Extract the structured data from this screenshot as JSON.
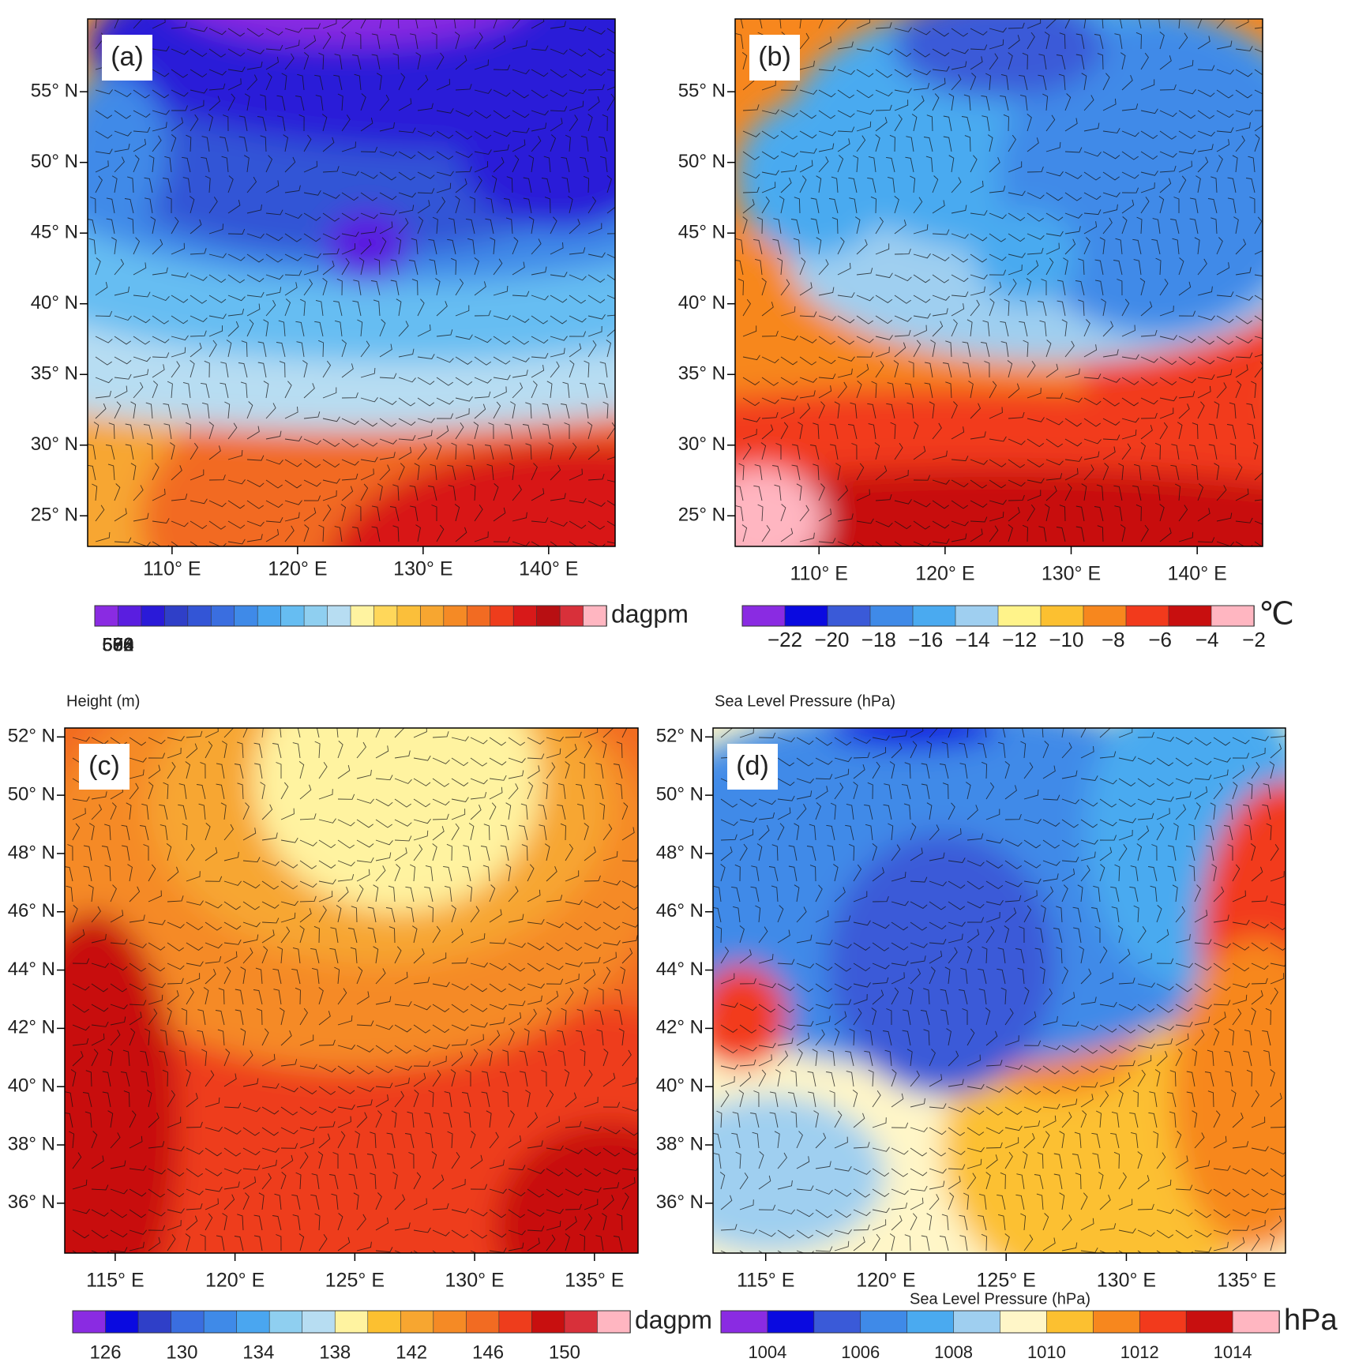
{
  "panels": [
    {
      "label": "(a)",
      "yticks": [
        "55° N",
        "50° N",
        "45° N",
        "40° N",
        "35° N",
        "30° N",
        "25° N"
      ],
      "xticks": [
        "110° E",
        "120° E",
        "130° E",
        "140° E"
      ],
      "colorbar": {
        "unit": "dagpm",
        "colors": [
          "#8a2be2",
          "#5a1ee0",
          "#2a1ad8",
          "#2f3fc8",
          "#3355d6",
          "#3a6ee0",
          "#3f8ae8",
          "#4aa6f0",
          "#66bdf2",
          "#8fcff0",
          "#b7ddf2",
          "#fff3a0",
          "#ffd75a",
          "#fbbf3a",
          "#f7a630",
          "#f58a25",
          "#f26b22",
          "#ee3d1c",
          "#d81919",
          "#b80f12",
          "#d8303a",
          "#ffb6c1"
        ],
        "labels": [
          "560",
          "564",
          "568",
          "572",
          "576",
          "580",
          "584",
          "588",
          "592",
          "596",
          "600"
        ]
      }
    },
    {
      "label": "(b)",
      "yticks": [
        "55° N",
        "50° N",
        "45° N",
        "40° N",
        "35° N",
        "30° N",
        "25° N"
      ],
      "xticks": [
        "110° E",
        "120° E",
        "130° E",
        "140° E"
      ],
      "colorbar": {
        "unit": "℃",
        "colors": [
          "#8a2be2",
          "#0a0ae0",
          "#3a5ad8",
          "#3f8ae8",
          "#4aaaf0",
          "#9fcff0",
          "#fff38a",
          "#fcc030",
          "#f7871e",
          "#f23a1c",
          "#c80f0f",
          "#ffb6c1"
        ],
        "labels": [
          "−22",
          "−20",
          "−18",
          "−16",
          "−14",
          "−12",
          "−10",
          "−8",
          "−6",
          "−4",
          "−2"
        ]
      }
    },
    {
      "label": "(c)",
      "title": "Height   (m)",
      "yticks": [
        "52° N",
        "50° N",
        "48° N",
        "46° N",
        "44° N",
        "42° N",
        "40° N",
        "38° N",
        "36° N"
      ],
      "xticks": [
        "115° E",
        "120° E",
        "125° E",
        "130° E",
        "135° E"
      ],
      "colorbar": {
        "unit": "dagpm",
        "colors": [
          "#8a2be2",
          "#0a0ae0",
          "#2f3fc8",
          "#3a6ee0",
          "#3f8ae8",
          "#4aa6f0",
          "#8fcff0",
          "#b7ddf2",
          "#fff3a0",
          "#fcc030",
          "#f7a630",
          "#f58a25",
          "#f26b22",
          "#ee3d1c",
          "#c80f0f",
          "#d8303a",
          "#ffb6c1"
        ],
        "labels": [
          "126",
          "130",
          "134",
          "138",
          "142",
          "146",
          "150"
        ]
      }
    },
    {
      "label": "(d)",
      "title": "Sea Level Pressure   (hPa)",
      "yticks": [
        "52° N",
        "50° N",
        "48° N",
        "46° N",
        "44° N",
        "42° N",
        "40° N",
        "38° N",
        "36° N"
      ],
      "xticks": [
        "115° E",
        "120° E",
        "125° E",
        "130° E",
        "135° E"
      ],
      "colorbar": {
        "unit": "hPa",
        "title": "Sea Level Pressure  (hPa)",
        "colors": [
          "#8a2be2",
          "#0a0ae0",
          "#3a5ad8",
          "#3f8ae8",
          "#4aaaf0",
          "#9fcff0",
          "#fff6c8",
          "#fcc030",
          "#f7871e",
          "#f23a1c",
          "#c80f0f",
          "#ffb6c1"
        ],
        "labels": [
          "1004",
          "1006",
          "1008",
          "1010",
          "1012",
          "1014"
        ]
      }
    }
  ]
}
